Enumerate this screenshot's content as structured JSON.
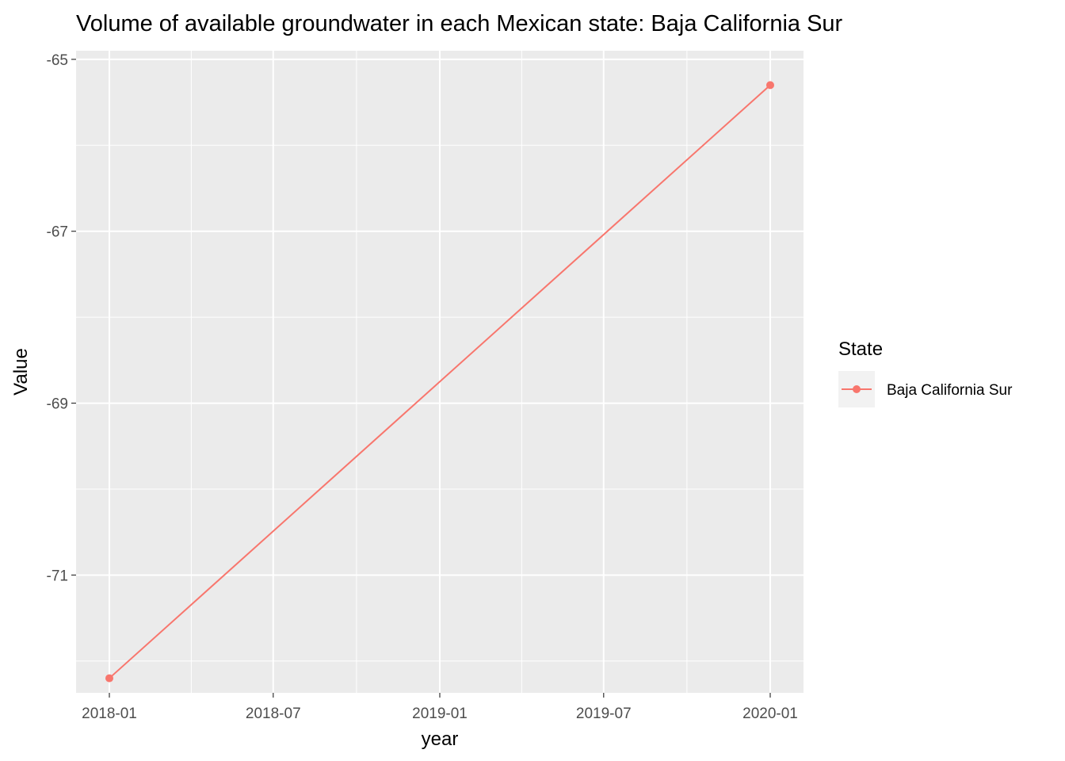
{
  "chart_data": {
    "type": "line",
    "title": "Volume of available groundwater in each Mexican state: Baja California Sur",
    "xlabel": "year",
    "ylabel": "Value",
    "x_ticks": [
      "2018-01",
      "2018-07",
      "2019-01",
      "2019-07",
      "2020-01"
    ],
    "y_ticks": [
      "-65",
      "-67",
      "-69",
      "-71"
    ],
    "ylim": [
      -72.37,
      -64.9
    ],
    "grid": true,
    "legend": {
      "title": "State",
      "position": "right",
      "entries": [
        "Baja California Sur"
      ]
    },
    "series": [
      {
        "name": "Baja California Sur",
        "color": "#F8766D",
        "x": [
          "2018-01-01",
          "2020-01-01"
        ],
        "y": [
          -72.2,
          -65.3
        ]
      }
    ]
  }
}
